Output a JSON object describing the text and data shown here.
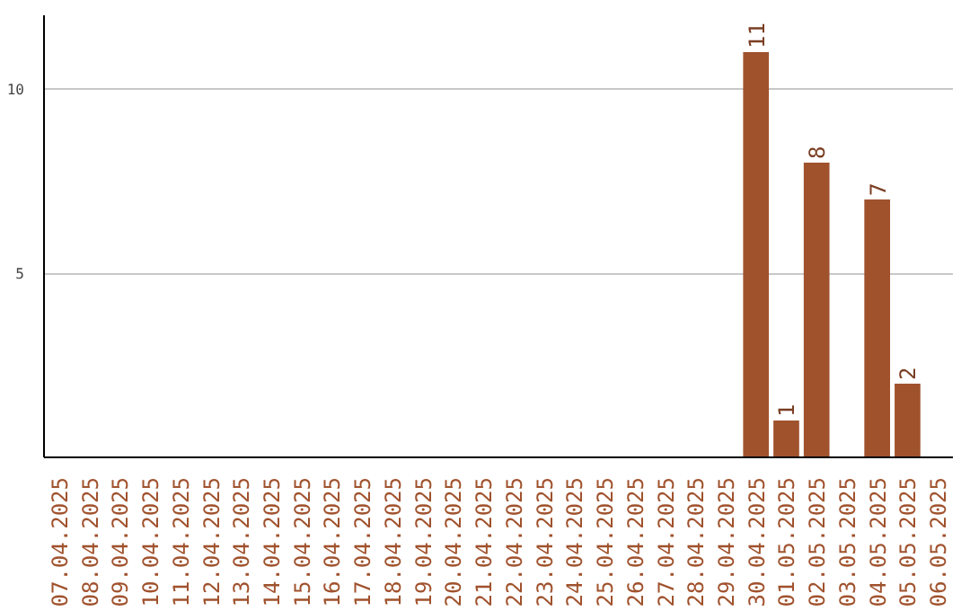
{
  "chart_data": {
    "type": "bar",
    "categories": [
      "07.04.2025",
      "08.04.2025",
      "09.04.2025",
      "10.04.2025",
      "11.04.2025",
      "12.04.2025",
      "13.04.2025",
      "14.04.2025",
      "15.04.2025",
      "16.04.2025",
      "17.04.2025",
      "18.04.2025",
      "19.04.2025",
      "20.04.2025",
      "21.04.2025",
      "22.04.2025",
      "23.04.2025",
      "24.04.2025",
      "25.04.2025",
      "26.04.2025",
      "27.04.2025",
      "28.04.2025",
      "29.04.2025",
      "30.04.2025",
      "01.05.2025",
      "02.05.2025",
      "03.05.2025",
      "04.05.2025",
      "05.05.2025",
      "06.05.2025"
    ],
    "values": [
      0,
      0,
      0,
      0,
      0,
      0,
      0,
      0,
      0,
      0,
      0,
      0,
      0,
      0,
      0,
      0,
      0,
      0,
      0,
      0,
      0,
      0,
      0,
      11,
      1,
      8,
      0,
      7,
      2,
      0
    ],
    "value_labels": [
      null,
      null,
      null,
      null,
      null,
      null,
      null,
      null,
      null,
      null,
      null,
      null,
      null,
      null,
      null,
      null,
      null,
      null,
      null,
      null,
      null,
      null,
      null,
      "11",
      "1",
      "8",
      null,
      "7",
      "2",
      null
    ],
    "color": "#a0522d",
    "ylim": [
      0,
      12
    ],
    "yticks": [
      5,
      10
    ],
    "grid": "y"
  }
}
